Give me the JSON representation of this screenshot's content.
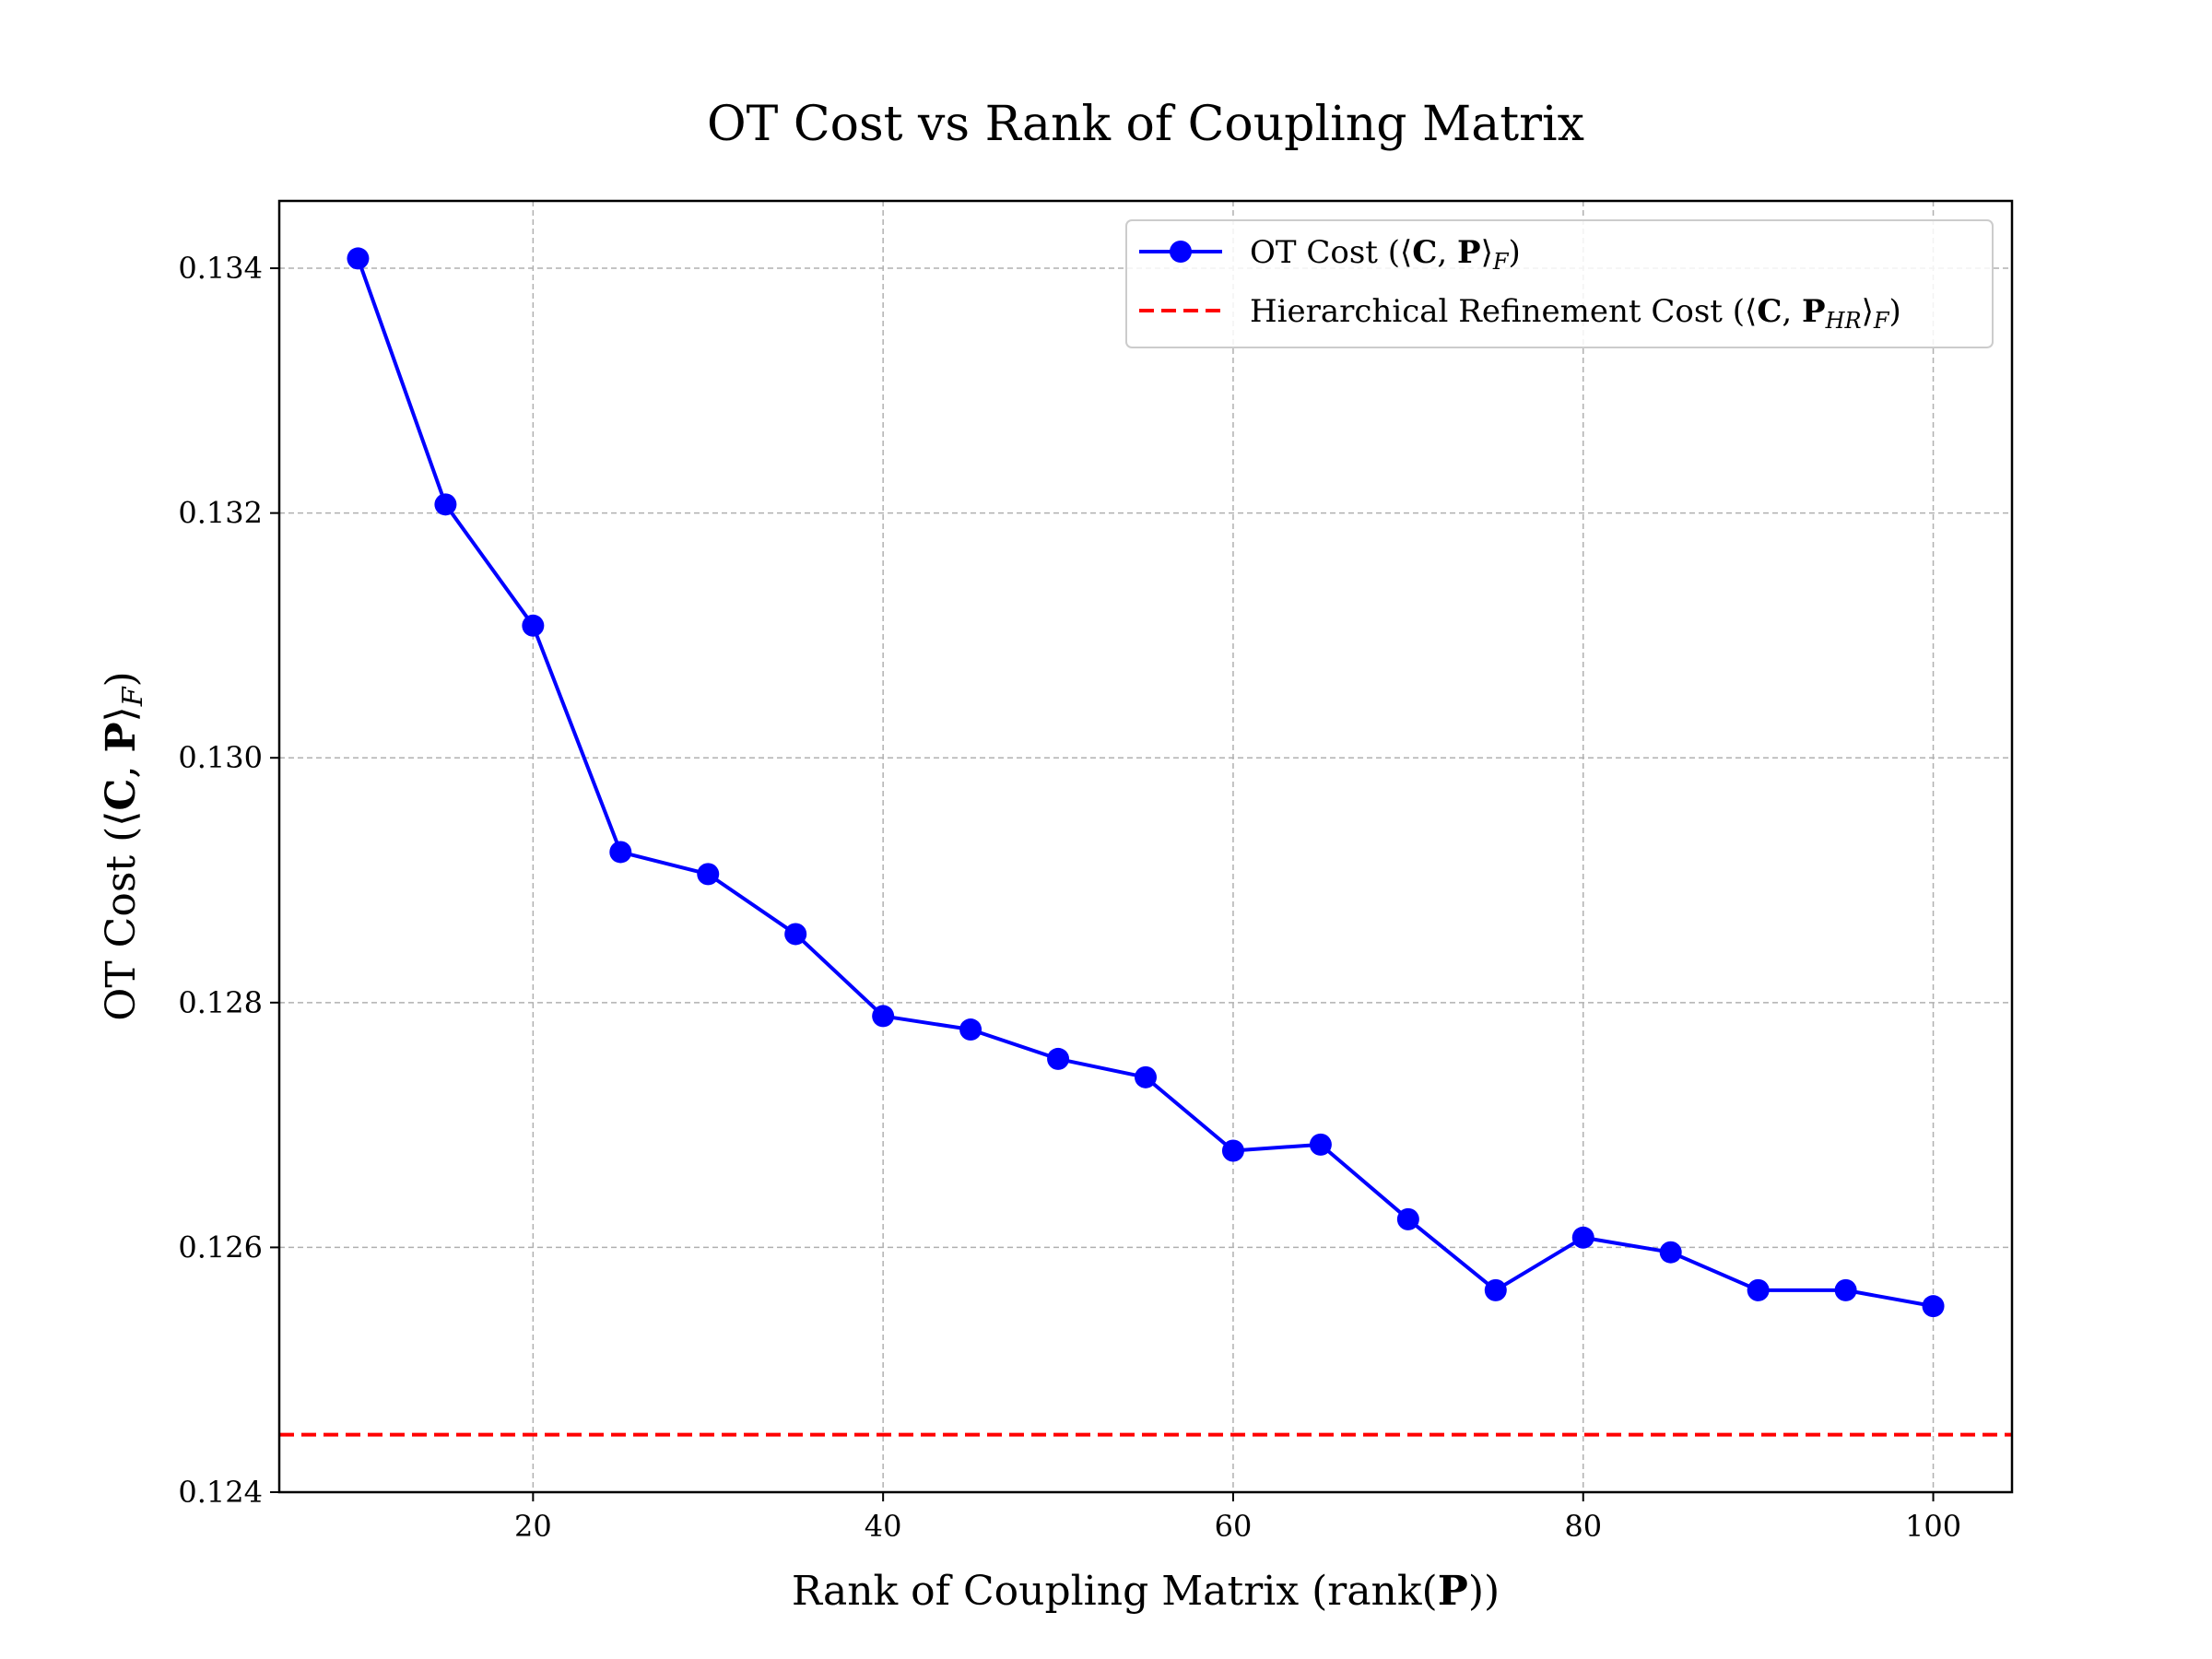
{
  "chart_data": {
    "type": "line",
    "title": "OT Cost vs Rank of Coupling Matrix",
    "xlabel": "Rank of Coupling Matrix (rank(P))",
    "ylabel": "OT Cost (⟨C, P⟩F)",
    "xlim": [
      5.5,
      104.5
    ],
    "ylim": [
      0.124,
      0.13455
    ],
    "x_ticks": [
      20,
      40,
      60,
      80,
      100
    ],
    "x_tick_labels": [
      "20",
      "40",
      "60",
      "80",
      "100"
    ],
    "y_ticks": [
      0.124,
      0.126,
      0.128,
      0.13,
      0.132,
      0.134
    ],
    "y_tick_labels": [
      "0.124",
      "0.126",
      "0.128",
      "0.130",
      "0.132",
      "0.134"
    ],
    "grid": true,
    "legend_position": "top-right",
    "series": [
      {
        "name": "OT Cost (⟨C, P⟩F)",
        "color": "#0000ff",
        "marker": "circle",
        "x": [
          10,
          15,
          20,
          25,
          30,
          35,
          40,
          45,
          50,
          55,
          60,
          65,
          70,
          75,
          80,
          85,
          90,
          95,
          100
        ],
        "y": [
          0.13408,
          0.13207,
          0.13108,
          0.12923,
          0.12905,
          0.12856,
          0.12789,
          0.12778,
          0.12754,
          0.12739,
          0.12679,
          0.12684,
          0.12623,
          0.12565,
          0.12608,
          0.12596,
          0.12565,
          0.12565,
          0.12552
        ]
      }
    ],
    "reference_lines": [
      {
        "name": "Hierarchical Refinement Cost (⟨C, PHR⟩F)",
        "color": "#ff0000",
        "style": "dashed",
        "y": 0.12447
      }
    ]
  }
}
